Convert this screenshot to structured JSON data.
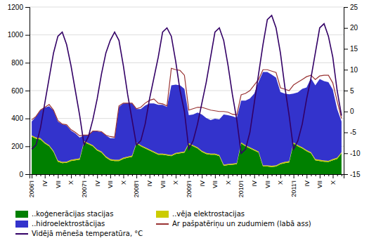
{
  "chart_data": {
    "type": "area",
    "stacked": true,
    "grid": true,
    "legend": "lower left",
    "categories": [
      "2006'I",
      null,
      null,
      "IV",
      null,
      null,
      "VII",
      null,
      null,
      "X",
      null,
      null,
      "2007'I",
      null,
      null,
      "IV",
      null,
      null,
      "VII",
      null,
      null,
      "X",
      null,
      null,
      "2008'I",
      null,
      null,
      "IV",
      null,
      null,
      "VII",
      null,
      null,
      "X",
      null,
      null,
      "2009'I",
      null,
      null,
      "IV",
      null,
      null,
      "VII",
      null,
      null,
      "X",
      null,
      null,
      "2010'I",
      null,
      null,
      "IV",
      null,
      null,
      "VII",
      null,
      null,
      "X",
      null,
      null,
      "2011'I",
      null,
      null,
      "IV",
      null,
      null,
      "VII",
      null,
      null,
      "X",
      null,
      null
    ],
    "ylim": [
      0,
      1200
    ],
    "yticks": [
      0,
      200,
      400,
      600,
      800,
      1000,
      1200
    ],
    "y2lim": [
      -15,
      25
    ],
    "y2ticks": [
      -15,
      -10,
      -5,
      0,
      5,
      10,
      15,
      20,
      25
    ],
    "series": [
      {
        "name": "..koģenerācijas stacijas",
        "type": "area",
        "color": "#008000",
        "values": [
          270,
          255,
          250,
          220,
          200,
          160,
          90,
          80,
          82,
          95,
          100,
          105,
          230,
          215,
          200,
          170,
          155,
          120,
          100,
          95,
          95,
          110,
          118,
          125,
          220,
          200,
          185,
          170,
          155,
          140,
          140,
          135,
          130,
          145,
          150,
          155,
          215,
          200,
          185,
          160,
          145,
          140,
          140,
          130,
          60,
          65,
          68,
          72,
          220,
          200,
          185,
          170,
          155,
          55,
          55,
          52,
          55,
          72,
          80,
          85,
          220,
          200,
          185,
          165,
          150,
          100,
          95,
          90,
          88,
          100,
          110,
          150
        ]
      },
      {
        "name": "..vēja elektrostacijas",
        "type": "area",
        "color": "#cccc00",
        "values": [
          8,
          8,
          8,
          8,
          8,
          8,
          8,
          8,
          8,
          8,
          8,
          8,
          8,
          8,
          8,
          8,
          8,
          8,
          8,
          8,
          8,
          8,
          8,
          8,
          8,
          8,
          8,
          8,
          8,
          8,
          8,
          8,
          8,
          8,
          8,
          8,
          8,
          8,
          8,
          8,
          8,
          8,
          8,
          8,
          8,
          8,
          8,
          8,
          8,
          8,
          8,
          8,
          8,
          8,
          8,
          8,
          8,
          8,
          8,
          8,
          8,
          8,
          8,
          8,
          8,
          8,
          8,
          8,
          8,
          8,
          8,
          8
        ]
      },
      {
        "name": "..hidroelektrostācijas",
        "type": "area",
        "color": "#3333cc",
        "values": [
          100,
          150,
          200,
          250,
          280,
          290,
          280,
          270,
          260,
          210,
          185,
          150,
          40,
          60,
          100,
          130,
          140,
          150,
          150,
          155,
          380,
          390,
          385,
          375,
          240,
          260,
          300,
          330,
          345,
          350,
          350,
          340,
          500,
          490,
          480,
          450,
          200,
          220,
          250,
          260,
          250,
          240,
          250,
          255,
          360,
          350,
          340,
          325,
          300,
          320,
          350,
          400,
          500,
          670,
          670,
          655,
          630,
          510,
          490,
          480,
          350,
          380,
          420,
          450,
          530,
          530,
          580,
          570,
          565,
          500,
          350,
          220
        ]
      },
      {
        "name": "Ar pašpatēriņu un zudumiem (labā ass)",
        "type": "line",
        "color": "#993333",
        "values": [
          390,
          415,
          460,
          480,
          500,
          460,
          385,
          360,
          355,
          320,
          300,
          275,
          280,
          280,
          310,
          310,
          305,
          280,
          270,
          265,
          490,
          510,
          510,
          510,
          470,
          480,
          510,
          530,
          540,
          510,
          505,
          490,
          760,
          750,
          745,
          710,
          460,
          470,
          480,
          480,
          470,
          460,
          455,
          450,
          450,
          445,
          430,
          425,
          570,
          580,
          600,
          640,
          680,
          750,
          750,
          740,
          730,
          620,
          610,
          600,
          640,
          660,
          680,
          700,
          710,
          680,
          705,
          710,
          710,
          655,
          525,
          400
        ]
      },
      {
        "name": "Vidējā mēneša temperatūra, °C",
        "type": "line",
        "axis": "y2",
        "color": "#330066",
        "values": [
          -9,
          -8,
          -4,
          2,
          8,
          14,
          18,
          19,
          16,
          11,
          5,
          -1,
          -8,
          -6,
          -2,
          3,
          9,
          14,
          17,
          19,
          17,
          11,
          4,
          -2,
          -8,
          -7,
          -3,
          3,
          8,
          13,
          19,
          20,
          18,
          12,
          5,
          0,
          -9,
          -7,
          -3,
          2,
          7,
          13,
          19,
          20,
          17,
          11,
          4,
          -2,
          -10,
          -9,
          -5,
          2,
          9,
          16,
          22,
          23,
          20,
          14,
          6,
          -1,
          -9,
          -7,
          -3,
          3,
          8,
          14,
          20,
          21,
          18,
          13,
          5,
          -1
        ]
      }
    ]
  }
}
